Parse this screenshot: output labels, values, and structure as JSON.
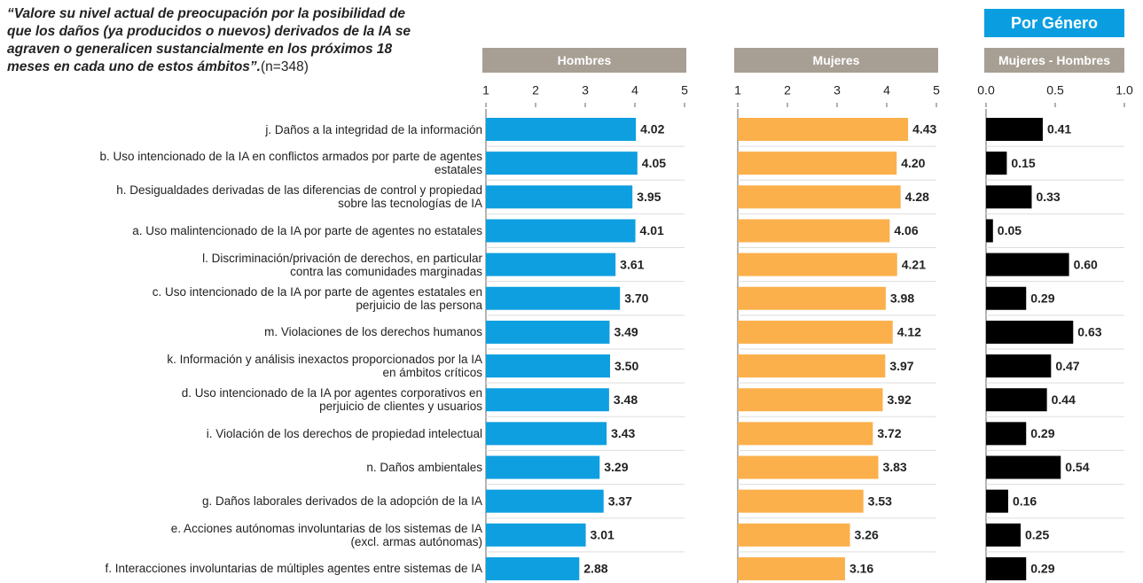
{
  "question": "“Valore su nivel actual de preocupación por la posibilidad de que los daños (ya producidos o nuevos) derivados de la IA se agraven o generalicen sustancialmente en los próximos 18 meses en cada uno de estos ámbitos”.",
  "sample": "(n=348)",
  "header": "Por Género",
  "chart_data": [
    {
      "type": "bar",
      "title": "Hombres",
      "color": "#0e9fe0",
      "categories": [
        "j. Daños a la integridad de la información",
        "b. Uso intencionado de la IA en conflictos armados por parte de agentes\nestatales",
        "h. Desigualdades derivadas de las diferencias de control y propiedad\nsobre las tecnologías de IA",
        "a. Uso malintencionado de la IA por parte de agentes no estatales",
        "l. Discriminación/privación de derechos, en particular\ncontra las comunidades marginadas",
        "c. Uso intencionado de la IA por parte de agentes estatales en\nperjuicio de las persona",
        "m. Violaciones de los derechos humanos",
        "k. Información y análisis inexactos proporcionados por la IA\nen ámbitos críticos",
        "d. Uso intencionado de la IA por agentes corporativos en\nperjuicio de clientes y usuarios",
        "i.  Violación de los derechos de propiedad intelectual",
        "n. Daños ambientales",
        "g. Daños laborales derivados de la adopción de la IA",
        "e. Acciones autónomas involuntarias de los sistemas de IA\n(excl. armas autónomas)",
        "f. Interacciones involuntarias de múltiples agentes entre sistemas de IA"
      ],
      "values": [
        4.02,
        4.05,
        3.95,
        4.01,
        3.61,
        3.7,
        3.49,
        3.5,
        3.48,
        3.43,
        3.29,
        3.37,
        3.01,
        2.88
      ],
      "value_labels": [
        "4.02",
        "4.05",
        "3.95",
        "4.01",
        "3.61",
        "3.70",
        "3.49",
        "3.50",
        "3.48",
        "3.43",
        "3.29",
        "3.37",
        "3.01",
        "2.88"
      ],
      "xlim": [
        1,
        5
      ],
      "xticks": [
        1,
        2,
        3,
        4,
        5
      ]
    },
    {
      "type": "bar",
      "title": "Mujeres",
      "color": "#fbb04c",
      "values": [
        4.43,
        4.2,
        4.28,
        4.06,
        4.21,
        3.98,
        4.12,
        3.97,
        3.92,
        3.72,
        3.83,
        3.53,
        3.26,
        3.16
      ],
      "value_labels": [
        "4.43",
        "4.20",
        "4.28",
        "4.06",
        "4.21",
        "3.98",
        "4.12",
        "3.97",
        "3.92",
        "3.72",
        "3.83",
        "3.53",
        "3.26",
        "3.16"
      ],
      "xlim": [
        1,
        5
      ],
      "xticks": [
        1,
        2,
        3,
        4,
        5
      ]
    },
    {
      "type": "bar",
      "title": "Mujeres - Hombres",
      "color": "#000000",
      "values": [
        0.41,
        0.15,
        0.33,
        0.05,
        0.6,
        0.29,
        0.63,
        0.47,
        0.44,
        0.29,
        0.54,
        0.16,
        0.25,
        0.29
      ],
      "value_labels": [
        "0.41",
        "0.15",
        "0.33",
        "0.05",
        "0.60",
        "0.29",
        "0.63",
        "0.47",
        "0.44",
        "0.29",
        "0.54",
        "0.16",
        "0.25",
        "0.29"
      ],
      "xlim": [
        0,
        1
      ],
      "xticks": [
        {
          "value": 0,
          "label": "0.0"
        },
        {
          "value": 0.5,
          "label": "0.5"
        },
        {
          "value": 1,
          "label": "1.0"
        }
      ]
    }
  ]
}
